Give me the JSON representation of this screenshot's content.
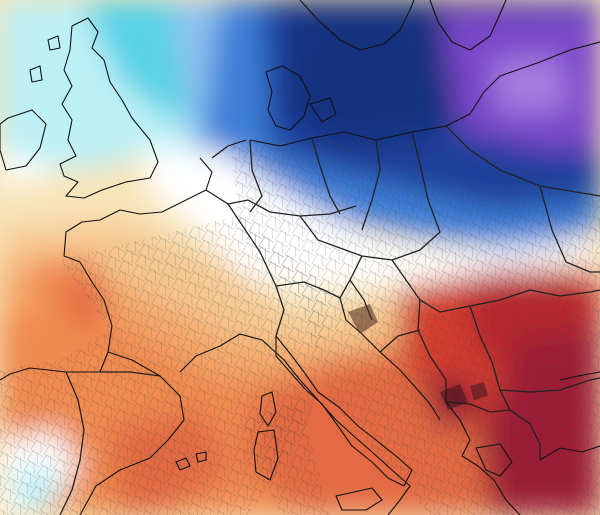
{
  "map": {
    "palette": {
      "white": "#ffffff",
      "cyan_light": "#bdf0f6",
      "cyan": "#59d2e6",
      "blue_light": "#8fc2ef",
      "blue": "#3d7fd8",
      "blue_dark": "#1f3f9e",
      "navy": "#17307f",
      "purple": "#7a47c9",
      "purple_light": "#a77ce0",
      "cream": "#f8e4b8",
      "peach": "#f6c791",
      "orange_light": "#f4a86a",
      "orange": "#f08a4f",
      "red_orange": "#e36a43",
      "red": "#d43e2e",
      "red_dark": "#b8262d",
      "crimson": "#9d1f35",
      "coastline": "#111111",
      "border": "#222222",
      "admin": "#555555"
    }
  }
}
